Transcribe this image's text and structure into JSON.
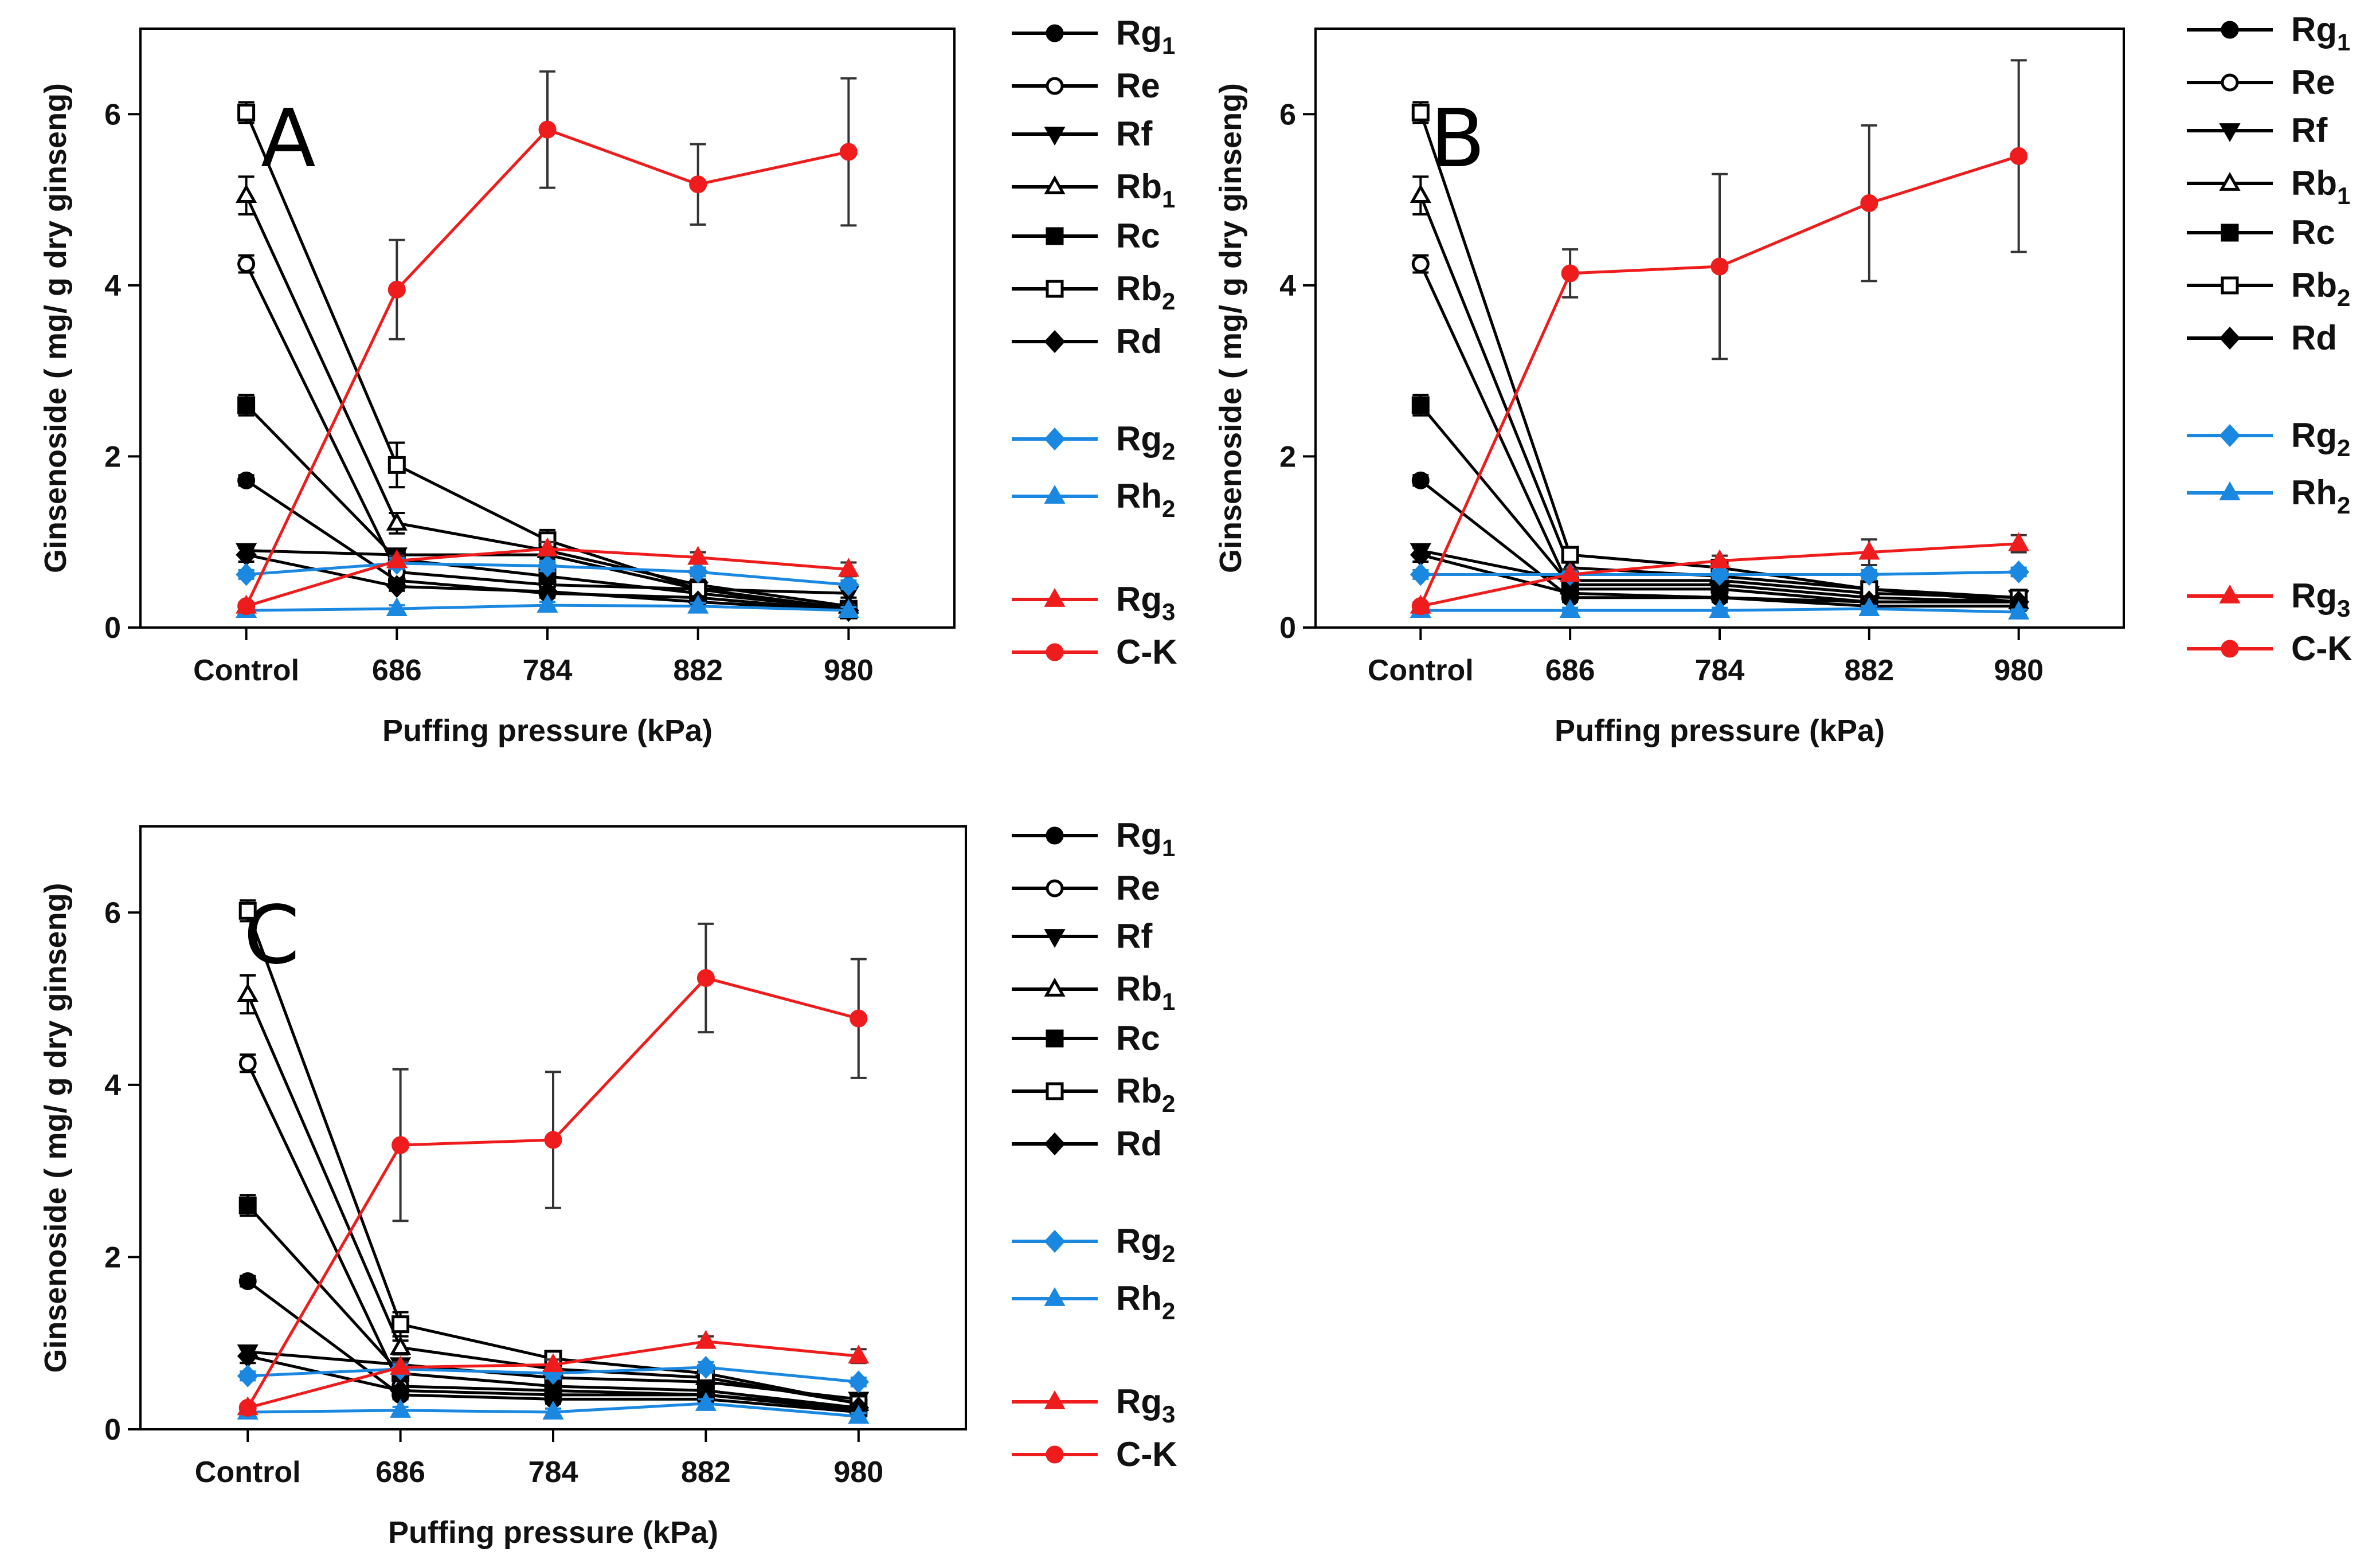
{
  "figure": {
    "description": "Ginsenoside content vs puffing pressure, three panels"
  },
  "chart_data": [
    {
      "panel": "A",
      "type": "line",
      "xlabel": "Puffing pressure (kPa)",
      "ylabel": "Ginsenoside ( mg/ g dry ginseng)",
      "categories": [
        "Control",
        "686",
        "784",
        "882",
        "980"
      ],
      "ylim": [
        0,
        7
      ],
      "yticks": [
        0,
        2,
        4,
        6
      ],
      "series": [
        {
          "name": "Rg1",
          "base": "Rg",
          "sub": "1",
          "color": "#000000",
          "marker": "circle",
          "fill": "filled",
          "values": [
            1.72,
            0.55,
            0.4,
            0.35,
            0.2
          ],
          "errors": [
            0.06,
            0.06,
            0.05,
            0.05,
            0.05
          ]
        },
        {
          "name": "Re",
          "base": "Re",
          "sub": "",
          "color": "#000000",
          "marker": "circle",
          "fill": "open",
          "values": [
            4.25,
            0.65,
            0.5,
            0.45,
            0.22
          ],
          "errors": [
            0.1,
            0.06,
            0.05,
            0.05,
            0.05
          ]
        },
        {
          "name": "Rf",
          "base": "Rf",
          "sub": "",
          "color": "#000000",
          "marker": "triangle-down",
          "fill": "filled",
          "values": [
            0.9,
            0.85,
            0.85,
            0.45,
            0.4
          ],
          "errors": [
            0.05,
            0.06,
            0.08,
            0.05,
            0.05
          ]
        },
        {
          "name": "Rb1",
          "base": "Rb",
          "sub": "1",
          "color": "#000000",
          "marker": "triangle-up",
          "fill": "open",
          "values": [
            5.05,
            1.22,
            0.9,
            0.5,
            0.25
          ],
          "errors": [
            0.22,
            0.12,
            0.1,
            0.06,
            0.05
          ]
        },
        {
          "name": "Rc",
          "base": "Rc",
          "sub": "",
          "color": "#000000",
          "marker": "square",
          "fill": "filled",
          "values": [
            2.6,
            0.8,
            0.6,
            0.4,
            0.22
          ],
          "errors": [
            0.12,
            0.08,
            0.06,
            0.05,
            0.05
          ]
        },
        {
          "name": "Rb2",
          "base": "Rb",
          "sub": "2",
          "color": "#000000",
          "marker": "square",
          "fill": "open",
          "values": [
            6.02,
            1.9,
            1.02,
            0.45,
            0.2
          ],
          "errors": [
            0.12,
            0.26,
            0.12,
            0.06,
            0.05
          ]
        },
        {
          "name": "Rd",
          "base": "Rd",
          "sub": "",
          "color": "#000000",
          "marker": "diamond",
          "fill": "filled",
          "values": [
            0.85,
            0.48,
            0.42,
            0.3,
            0.2
          ],
          "errors": [
            0.08,
            0.05,
            0.05,
            0.05,
            0.05
          ]
        },
        {
          "name": "Rg2",
          "base": "Rg",
          "sub": "2",
          "color": "#1a88e0",
          "marker": "diamond",
          "fill": "filled",
          "values": [
            0.62,
            0.75,
            0.72,
            0.65,
            0.5
          ],
          "errors": [
            0.05,
            0.06,
            0.06,
            0.05,
            0.05
          ]
        },
        {
          "name": "Rh2",
          "base": "Rh",
          "sub": "2",
          "color": "#1a88e0",
          "marker": "triangle-up",
          "fill": "filled",
          "values": [
            0.2,
            0.22,
            0.26,
            0.25,
            0.2
          ],
          "errors": [
            0.03,
            0.04,
            0.04,
            0.04,
            0.04
          ]
        },
        {
          "name": "Rg3",
          "base": "Rg",
          "sub": "3",
          "color": "#ee1c1c",
          "marker": "triangle-up",
          "fill": "filled",
          "values": [
            0.25,
            0.78,
            0.92,
            0.82,
            0.68
          ],
          "errors": [
            0.04,
            0.06,
            0.08,
            0.06,
            0.08
          ]
        },
        {
          "name": "C-K",
          "base": "C-K",
          "sub": "",
          "color": "#ee1c1c",
          "marker": "circle",
          "fill": "filled",
          "values": [
            0.25,
            3.95,
            5.82,
            5.18,
            5.56
          ],
          "errors": [
            0.04,
            0.58,
            0.68,
            0.47,
            0.86
          ]
        }
      ]
    },
    {
      "panel": "B",
      "type": "line",
      "xlabel": "Puffing pressure (kPa)",
      "ylabel": "Ginsenoside ( mg/ g dry ginseng)",
      "categories": [
        "Control",
        "686",
        "784",
        "882",
        "980"
      ],
      "ylim": [
        0,
        7
      ],
      "yticks": [
        0,
        2,
        4,
        6
      ],
      "series": [
        {
          "name": "Rg1",
          "base": "Rg",
          "sub": "1",
          "color": "#000000",
          "marker": "circle",
          "fill": "filled",
          "values": [
            1.72,
            0.35,
            0.35,
            0.25,
            0.25
          ],
          "errors": [
            0.06,
            0.05,
            0.05,
            0.05,
            0.05
          ]
        },
        {
          "name": "Re",
          "base": "Re",
          "sub": "",
          "color": "#000000",
          "marker": "circle",
          "fill": "open",
          "values": [
            4.25,
            0.45,
            0.45,
            0.3,
            0.3
          ],
          "errors": [
            0.1,
            0.05,
            0.05,
            0.05,
            0.05
          ]
        },
        {
          "name": "Rf",
          "base": "Rf",
          "sub": "",
          "color": "#000000",
          "marker": "triangle-down",
          "fill": "filled",
          "values": [
            0.9,
            0.55,
            0.55,
            0.4,
            0.35
          ],
          "errors": [
            0.05,
            0.05,
            0.05,
            0.05,
            0.05
          ]
        },
        {
          "name": "Rb1",
          "base": "Rb",
          "sub": "1",
          "color": "#000000",
          "marker": "triangle-up",
          "fill": "open",
          "values": [
            5.05,
            0.7,
            0.6,
            0.45,
            0.3
          ],
          "errors": [
            0.22,
            0.06,
            0.06,
            0.05,
            0.05
          ]
        },
        {
          "name": "Rc",
          "base": "Rc",
          "sub": "",
          "color": "#000000",
          "marker": "square",
          "fill": "filled",
          "values": [
            2.6,
            0.5,
            0.5,
            0.35,
            0.3
          ],
          "errors": [
            0.12,
            0.05,
            0.05,
            0.05,
            0.05
          ]
        },
        {
          "name": "Rb2",
          "base": "Rb",
          "sub": "2",
          "color": "#000000",
          "marker": "square",
          "fill": "open",
          "values": [
            6.02,
            0.85,
            0.7,
            0.45,
            0.35
          ],
          "errors": [
            0.12,
            0.06,
            0.06,
            0.05,
            0.05
          ]
        },
        {
          "name": "Rd",
          "base": "Rd",
          "sub": "",
          "color": "#000000",
          "marker": "diamond",
          "fill": "filled",
          "values": [
            0.85,
            0.4,
            0.35,
            0.3,
            0.3
          ],
          "errors": [
            0.08,
            0.05,
            0.05,
            0.05,
            0.05
          ]
        },
        {
          "name": "Rg2",
          "base": "Rg",
          "sub": "2",
          "color": "#1a88e0",
          "marker": "diamond",
          "fill": "filled",
          "values": [
            0.62,
            0.62,
            0.62,
            0.62,
            0.65
          ],
          "errors": [
            0.05,
            0.05,
            0.05,
            0.05,
            0.05
          ]
        },
        {
          "name": "Rh2",
          "base": "Rh",
          "sub": "2",
          "color": "#1a88e0",
          "marker": "triangle-up",
          "fill": "filled",
          "values": [
            0.2,
            0.2,
            0.2,
            0.22,
            0.18
          ],
          "errors": [
            0.03,
            0.03,
            0.03,
            0.03,
            0.03
          ]
        },
        {
          "name": "Rg3",
          "base": "Rg",
          "sub": "3",
          "color": "#ee1c1c",
          "marker": "triangle-up",
          "fill": "filled",
          "values": [
            0.25,
            0.62,
            0.78,
            0.88,
            0.98
          ],
          "errors": [
            0.04,
            0.06,
            0.06,
            0.15,
            0.1
          ]
        },
        {
          "name": "C-K",
          "base": "C-K",
          "sub": "",
          "color": "#ee1c1c",
          "marker": "circle",
          "fill": "filled",
          "values": [
            0.25,
            4.14,
            4.22,
            4.96,
            5.51
          ],
          "errors": [
            0.04,
            0.28,
            1.08,
            0.91,
            1.12
          ]
        }
      ]
    },
    {
      "panel": "C",
      "type": "line",
      "xlabel": "Puffing pressure (kPa)",
      "ylabel": "Ginsenoside ( mg/ g dry ginseng)",
      "categories": [
        "Control",
        "686",
        "784",
        "882",
        "980"
      ],
      "ylim": [
        0,
        7
      ],
      "yticks": [
        0,
        2,
        4,
        6
      ],
      "series": [
        {
          "name": "Rg1",
          "base": "Rg",
          "sub": "1",
          "color": "#000000",
          "marker": "circle",
          "fill": "filled",
          "values": [
            1.72,
            0.4,
            0.35,
            0.35,
            0.2
          ],
          "errors": [
            0.06,
            0.05,
            0.05,
            0.05,
            0.05
          ]
        },
        {
          "name": "Re",
          "base": "Re",
          "sub": "",
          "color": "#000000",
          "marker": "circle",
          "fill": "open",
          "values": [
            4.25,
            0.5,
            0.45,
            0.4,
            0.22
          ],
          "errors": [
            0.1,
            0.05,
            0.05,
            0.05,
            0.05
          ]
        },
        {
          "name": "Rf",
          "base": "Rf",
          "sub": "",
          "color": "#000000",
          "marker": "triangle-down",
          "fill": "filled",
          "values": [
            0.9,
            0.75,
            0.6,
            0.55,
            0.35
          ],
          "errors": [
            0.05,
            0.06,
            0.05,
            0.05,
            0.05
          ]
        },
        {
          "name": "Rb1",
          "base": "Rb",
          "sub": "1",
          "color": "#000000",
          "marker": "triangle-up",
          "fill": "open",
          "values": [
            5.05,
            0.95,
            0.7,
            0.6,
            0.3
          ],
          "errors": [
            0.22,
            0.08,
            0.06,
            0.06,
            0.05
          ]
        },
        {
          "name": "Rc",
          "base": "Rc",
          "sub": "",
          "color": "#000000",
          "marker": "square",
          "fill": "filled",
          "values": [
            2.6,
            0.65,
            0.5,
            0.45,
            0.25
          ],
          "errors": [
            0.12,
            0.06,
            0.05,
            0.05,
            0.05
          ]
        },
        {
          "name": "Rb2",
          "base": "Rb",
          "sub": "2",
          "color": "#000000",
          "marker": "square",
          "fill": "open",
          "values": [
            6.02,
            1.22,
            0.82,
            0.65,
            0.3
          ],
          "errors": [
            0.12,
            0.14,
            0.08,
            0.06,
            0.05
          ]
        },
        {
          "name": "Rd",
          "base": "Rd",
          "sub": "",
          "color": "#000000",
          "marker": "diamond",
          "fill": "filled",
          "values": [
            0.85,
            0.45,
            0.4,
            0.4,
            0.25
          ],
          "errors": [
            0.08,
            0.05,
            0.05,
            0.05,
            0.05
          ]
        },
        {
          "name": "Rg2",
          "base": "Rg",
          "sub": "2",
          "color": "#1a88e0",
          "marker": "diamond",
          "fill": "filled",
          "values": [
            0.62,
            0.7,
            0.65,
            0.72,
            0.55
          ],
          "errors": [
            0.05,
            0.06,
            0.06,
            0.06,
            0.05
          ]
        },
        {
          "name": "Rh2",
          "base": "Rh",
          "sub": "2",
          "color": "#1a88e0",
          "marker": "triangle-up",
          "fill": "filled",
          "values": [
            0.2,
            0.22,
            0.2,
            0.3,
            0.15
          ],
          "errors": [
            0.03,
            0.04,
            0.04,
            0.05,
            0.04
          ]
        },
        {
          "name": "Rg3",
          "base": "Rg",
          "sub": "3",
          "color": "#ee1c1c",
          "marker": "triangle-up",
          "fill": "filled",
          "values": [
            0.25,
            0.72,
            0.75,
            1.02,
            0.85
          ],
          "errors": [
            0.04,
            0.06,
            0.06,
            0.06,
            0.08
          ]
        },
        {
          "name": "C-K",
          "base": "C-K",
          "sub": "",
          "color": "#ee1c1c",
          "marker": "circle",
          "fill": "filled",
          "values": [
            0.25,
            3.3,
            3.36,
            5.24,
            4.77
          ],
          "errors": [
            0.04,
            0.88,
            0.79,
            0.63,
            0.69
          ]
        }
      ]
    }
  ]
}
